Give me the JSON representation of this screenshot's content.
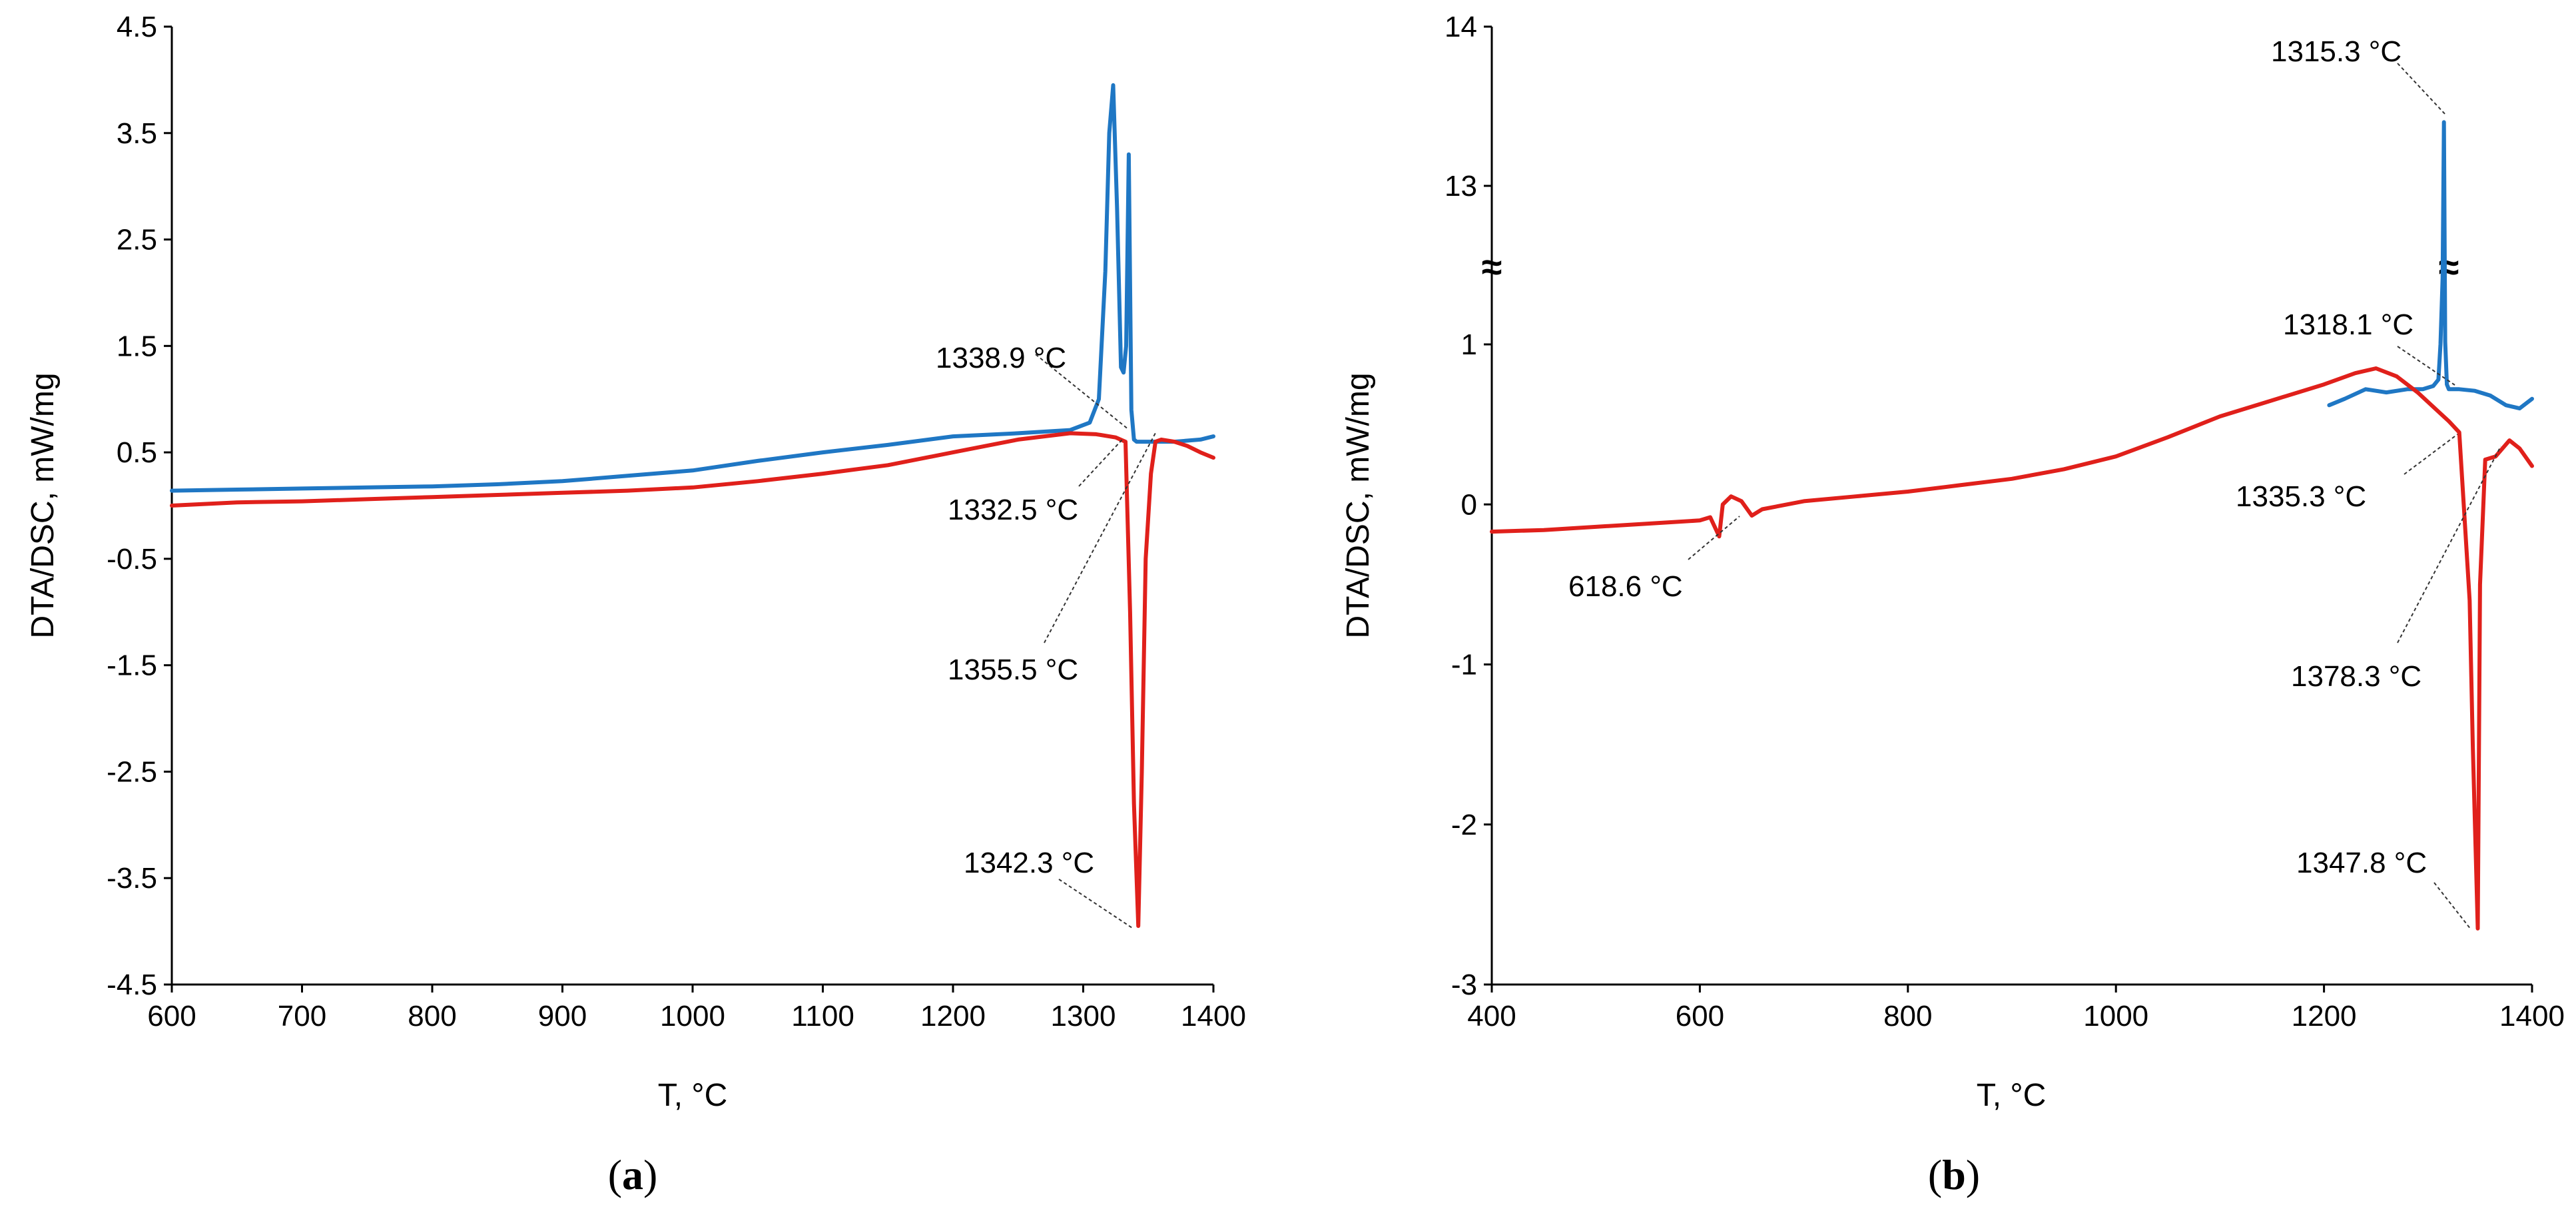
{
  "chart_data": [
    {
      "type": "line",
      "panel_label": "a",
      "xlabel": "T, °C",
      "ylabel": "DTA/DSC, mW/mg",
      "xlim": [
        600,
        1400
      ],
      "ylim": [
        -4.5,
        4.5
      ],
      "xticks": [
        "600",
        "700",
        "800",
        "900",
        "1000",
        "1100",
        "1200",
        "1300",
        "1400"
      ],
      "yticks": [
        "4.5",
        "3.5",
        "2.5",
        "1.5",
        "0.5",
        "-0.5",
        "-1.5",
        "-2.5",
        "-3.5",
        "-4.5"
      ],
      "colors": {
        "blue": "#1f77c4",
        "red": "#e0201b"
      },
      "series": [
        {
          "name": "blue",
          "x": [
            600,
            650,
            700,
            750,
            800,
            850,
            900,
            950,
            1000,
            1050,
            1100,
            1150,
            1200,
            1250,
            1290,
            1305,
            1312,
            1317,
            1320,
            1323,
            1326,
            1329,
            1331,
            1333,
            1335,
            1337,
            1339,
            1341,
            1350,
            1370,
            1390,
            1400
          ],
          "y": [
            0.14,
            0.15,
            0.16,
            0.17,
            0.18,
            0.2,
            0.23,
            0.28,
            0.33,
            0.42,
            0.5,
            0.57,
            0.65,
            0.68,
            0.71,
            0.78,
            1.0,
            2.2,
            3.5,
            3.95,
            2.8,
            1.3,
            1.25,
            1.5,
            3.3,
            0.9,
            0.62,
            0.6,
            0.6,
            0.6,
            0.62,
            0.65
          ]
        },
        {
          "name": "red",
          "x": [
            600,
            650,
            700,
            750,
            800,
            850,
            900,
            950,
            1000,
            1050,
            1100,
            1150,
            1200,
            1250,
            1290,
            1310,
            1325,
            1332.5,
            1336,
            1339,
            1342.3,
            1345,
            1348,
            1352,
            1355.5,
            1360,
            1370,
            1380,
            1390,
            1400
          ],
          "y": [
            0.0,
            0.03,
            0.04,
            0.06,
            0.08,
            0.1,
            0.12,
            0.14,
            0.17,
            0.23,
            0.3,
            0.38,
            0.5,
            0.62,
            0.68,
            0.67,
            0.64,
            0.6,
            -1.0,
            -2.8,
            -3.95,
            -2.5,
            -0.5,
            0.3,
            0.6,
            0.62,
            0.6,
            0.56,
            0.5,
            0.45
          ]
        }
      ],
      "annotations": [
        {
          "text": "1338.9 °C",
          "x": 1338.9,
          "y": 0.6
        },
        {
          "text": "1332.5 °C",
          "x": 1332.5,
          "y": 0.6
        },
        {
          "text": "1355.5 °C",
          "x": 1355.5,
          "y": 0.6
        },
        {
          "text": "1342.3 °C",
          "x": 1342.3,
          "y": -3.95
        }
      ]
    },
    {
      "type": "line",
      "panel_label": "b",
      "xlabel": "T, °C",
      "ylabel": "DTA/DSC, mW/mg",
      "xlim": [
        400,
        1400
      ],
      "ylim": [
        -3,
        14
      ],
      "axis_break": {
        "between": [
          1,
          13
        ],
        "symbol": "≈"
      },
      "xticks": [
        "400",
        "600",
        "800",
        "1000",
        "1200",
        "1400"
      ],
      "yticks": [
        "14",
        "13",
        "1",
        "0",
        "-1",
        "-2",
        "-3"
      ],
      "colors": {
        "blue": "#1f77c4",
        "red": "#e0201b"
      },
      "series": [
        {
          "name": "blue",
          "x": [
            1205,
            1220,
            1240,
            1260,
            1280,
            1295,
            1305,
            1310,
            1312,
            1314,
            1315.3,
            1316.5,
            1318.1,
            1320,
            1330,
            1345,
            1360,
            1375,
            1388,
            1400
          ],
          "y": [
            0.62,
            0.66,
            0.72,
            0.7,
            0.72,
            0.72,
            0.74,
            0.78,
            1.0,
            6.0,
            13.4,
            1.2,
            0.75,
            0.72,
            0.72,
            0.71,
            0.68,
            0.62,
            0.6,
            0.66
          ]
        },
        {
          "name": "red",
          "x": [
            400,
            450,
            500,
            550,
            600,
            610,
            618.6,
            622,
            630,
            640,
            650,
            660,
            700,
            750,
            800,
            850,
            900,
            950,
            1000,
            1050,
            1100,
            1150,
            1200,
            1230,
            1250,
            1270,
            1290,
            1310,
            1320,
            1330,
            1335.3,
            1340,
            1343,
            1347.8,
            1350,
            1355,
            1365,
            1378.3,
            1388,
            1400
          ],
          "y": [
            -0.17,
            -0.16,
            -0.14,
            -0.12,
            -0.1,
            -0.08,
            -0.2,
            0.0,
            0.05,
            0.02,
            -0.07,
            -0.03,
            0.02,
            0.05,
            0.08,
            0.12,
            0.16,
            0.22,
            0.3,
            0.42,
            0.55,
            0.65,
            0.75,
            0.82,
            0.85,
            0.8,
            0.7,
            0.58,
            0.52,
            0.45,
            -0.1,
            -0.6,
            -1.5,
            -2.65,
            -0.5,
            0.28,
            0.3,
            0.4,
            0.35,
            0.24
          ]
        }
      ],
      "annotations": [
        {
          "text": "1315.3 °C",
          "x": 1315.3,
          "y": 13.4
        },
        {
          "text": "1318.1 °C",
          "x": 1318.1,
          "y": 0.74
        },
        {
          "text": "1335.3 °C",
          "x": 1335.3,
          "y": 0.5
        },
        {
          "text": "618.6 °C",
          "x": 618.6,
          "y": -0.1
        },
        {
          "text": "1378.3 °C",
          "x": 1378.3,
          "y": 0.38
        },
        {
          "text": "1347.8 °C",
          "x": 1347.8,
          "y": -2.65
        }
      ]
    }
  ]
}
